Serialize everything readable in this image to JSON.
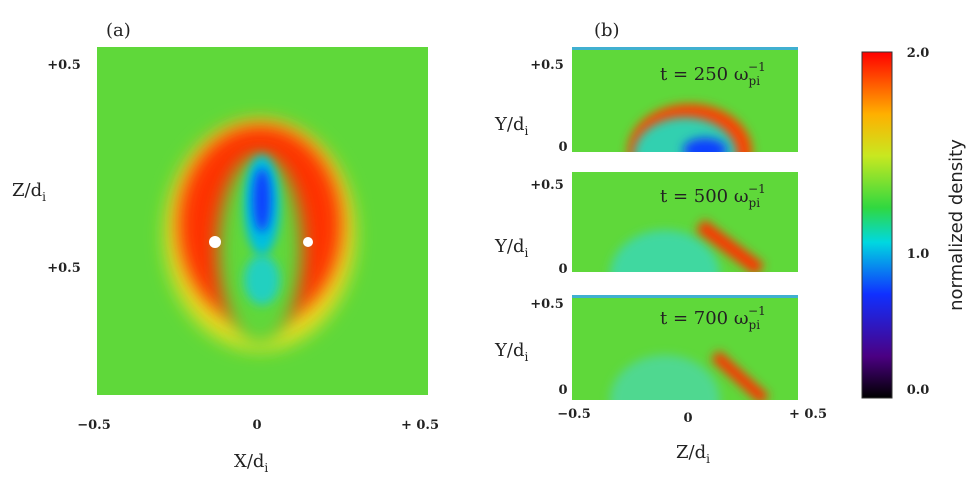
{
  "panel_a": {
    "label": "(a)",
    "y_ticks": [
      "+0.5",
      "+0.5"
    ],
    "y_label": {
      "text": "Z/d",
      "sub": "i"
    },
    "x_ticks": [
      "−0.5",
      "0",
      "+ 0.5"
    ],
    "x_label": {
      "text": "X/d",
      "sub": "i"
    }
  },
  "panel_b": {
    "label": "(b)",
    "strips": [
      {
        "time": {
          "text": "t = 250 ω",
          "sub": "pi",
          "sup": "−1"
        },
        "y_ticks": [
          "+0.5",
          "0"
        ],
        "y_label": {
          "text": "Y/d",
          "sub": "i"
        }
      },
      {
        "time": {
          "text": "t = 500 ω",
          "sub": "pi",
          "sup": "−1"
        },
        "y_ticks": [
          "+0.5",
          "0"
        ],
        "y_label": {
          "text": "Y/d",
          "sub": "i"
        }
      },
      {
        "time": {
          "text": "t = 700 ω",
          "sub": "pi",
          "sup": "−1"
        },
        "y_ticks": [
          "+0.5",
          "0"
        ],
        "y_label": {
          "text": "Y/d",
          "sub": "i"
        }
      }
    ],
    "x_ticks": [
      "−0.5",
      "0",
      "+ 0.5"
    ],
    "x_label": {
      "text": "Z/d",
      "sub": "i"
    }
  },
  "colorbar": {
    "ticks": [
      "2.0",
      "1.0",
      "0.0"
    ],
    "label": "normalized density"
  }
}
